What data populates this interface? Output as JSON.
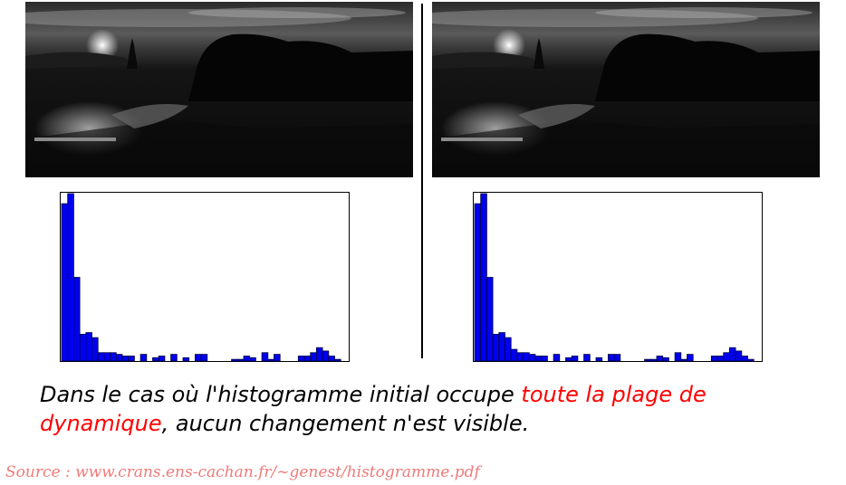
{
  "caption": {
    "part1": "Dans le cas où l'histogramme initial occupe ",
    "highlight": "toute la plage de dynamique",
    "part2": ", aucun changement n'est visible."
  },
  "source": "Source : www.crans.ens-cachan.fr/~genest/histogramme.pdf",
  "colors": {
    "bar_fill": "#0000ee",
    "bar_edge": "#00003a",
    "highlight": "#ff0000",
    "source": "#f07a7a"
  },
  "chart_data": [
    {
      "type": "bar",
      "title": "",
      "xlabel": "",
      "ylabel": "",
      "ylim": [
        0,
        100
      ],
      "grid": false,
      "values": [
        94,
        100,
        50,
        16,
        17,
        14,
        5,
        5,
        5,
        4,
        3,
        3,
        0,
        4,
        0,
        2,
        3,
        0,
        4,
        0,
        2,
        0,
        4,
        4,
        0,
        0,
        0,
        0,
        1,
        1,
        3,
        2,
        0,
        5,
        1,
        4,
        0,
        0,
        0,
        3,
        3,
        5,
        8,
        6,
        3,
        1,
        0
      ]
    },
    {
      "type": "bar",
      "title": "",
      "xlabel": "",
      "ylabel": "",
      "ylim": [
        0,
        100
      ],
      "grid": false,
      "values": [
        94,
        100,
        50,
        16,
        17,
        14,
        7,
        5,
        5,
        4,
        3,
        3,
        0,
        4,
        0,
        2,
        3,
        0,
        4,
        0,
        2,
        0,
        4,
        4,
        0,
        0,
        0,
        0,
        1,
        1,
        3,
        2,
        0,
        5,
        1,
        4,
        0,
        0,
        0,
        3,
        3,
        5,
        8,
        6,
        3,
        1,
        0
      ]
    }
  ]
}
